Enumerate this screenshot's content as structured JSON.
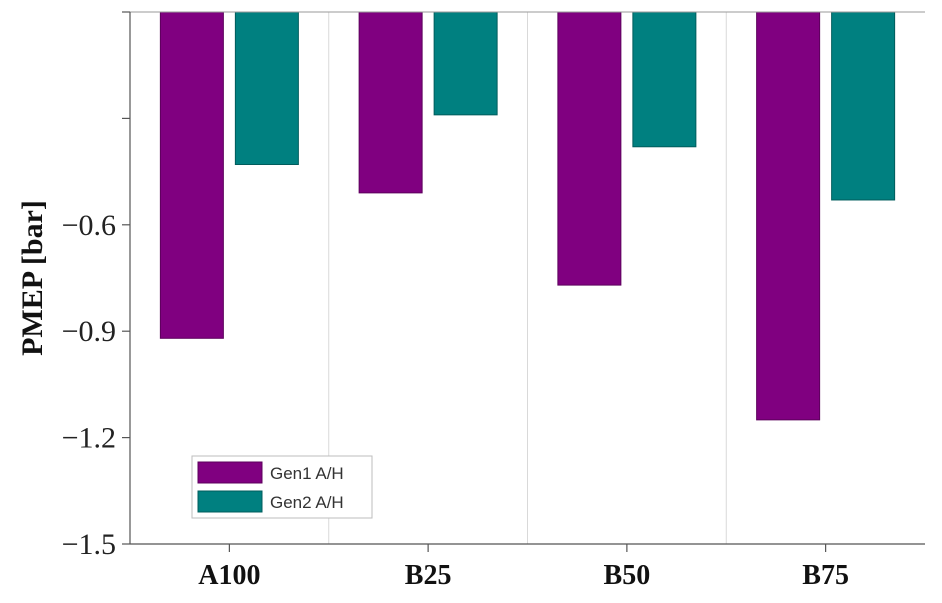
{
  "chart_data": {
    "type": "bar",
    "title": "",
    "xlabel": "",
    "ylabel": "PMEP [bar]",
    "categories": [
      "A100",
      "B25",
      "B50",
      "B75"
    ],
    "series": [
      {
        "name": "Gen1 A/H",
        "color": "#800080",
        "values": [
          -0.92,
          -0.51,
          -0.77,
          -1.15
        ]
      },
      {
        "name": "Gen2 A/H",
        "color": "#008080",
        "values": [
          -0.43,
          -0.29,
          -0.38,
          -0.53
        ]
      }
    ],
    "ylim": [
      -1.5,
      0
    ],
    "yticks": [
      -0.3,
      -0.6,
      -0.9,
      -1.2,
      -1.5
    ],
    "ytick_labels": [
      "",
      "−0.6",
      "−0.9",
      "−1.2",
      "−1.5"
    ],
    "grid": "vertical separators between categories",
    "legend_position": "bottom-left"
  }
}
